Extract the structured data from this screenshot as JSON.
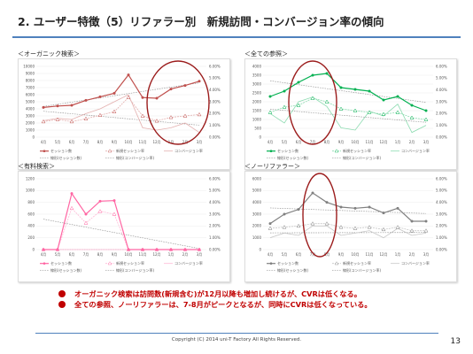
{
  "slide": {
    "title": "2. ユーザー特徴（5）リファラー別　新規訪問・コンバージョン率の傾向",
    "page_number": "13",
    "copyright": "Copyright (C) 2014 uni-T Factory  All Rights Reserved.",
    "accent_color": "#4f81bd",
    "bullet_color": "#c00000",
    "bullets": [
      "オーガニック検索は訪問数(新規含む)が12月以降も増加し続けるが、CVRは低くなる。",
      "全ての参照、ノーリファラーは、7-8月がピークとなるが、同時にCVRは低くなっている。"
    ]
  },
  "chart_data": [
    {
      "type": "line",
      "title": "＜オーガニック検索＞",
      "color": "#c0504d",
      "x": [
        "4月",
        "5月",
        "6月",
        "7月",
        "8月",
        "9月",
        "10月",
        "11月",
        "12月",
        "1月",
        "2月",
        "3月"
      ],
      "ylim_left": [
        0,
        10000
      ],
      "yticks_left": [
        "0",
        "1000",
        "2000",
        "3000",
        "4000",
        "5000",
        "6000",
        "7000",
        "8000",
        "9000",
        "10000"
      ],
      "ylim_right": [
        0,
        0.06
      ],
      "yticks_right": [
        "0.00%",
        "1.00%",
        "2.00%",
        "3.00%",
        "4.00%",
        "5.00%",
        "6.00%"
      ],
      "legend": [
        "セッション数",
        "新規セッション率",
        "コンバージョン率",
        "線形(セッション数)",
        "線形(コンバージョン率)"
      ],
      "series": [
        {
          "name": "セッション数",
          "axis": "left",
          "values": [
            4200,
            4400,
            4500,
            5200,
            5700,
            6200,
            8800,
            5600,
            5500,
            6800,
            7300,
            7900
          ]
        },
        {
          "name": "新規セッション率",
          "axis": "left",
          "values": [
            2200,
            2500,
            2200,
            2600,
            3100,
            3600,
            5600,
            3000,
            2300,
            2800,
            3000,
            3200
          ]
        },
        {
          "name": "コンバージョン率",
          "axis": "right",
          "values": [
            0.014,
            0.016,
            0.015,
            0.02,
            0.024,
            0.03,
            0.036,
            0.008,
            0.006,
            0.008,
            0.012,
            0.004
          ]
        }
      ],
      "highlight": {
        "x_from": "12月",
        "x_to": "3月"
      }
    },
    {
      "type": "line",
      "title": "＜全ての参照＞",
      "color": "#00b050",
      "x": [
        "4月",
        "5月",
        "6月",
        "7月",
        "8月",
        "9月",
        "10月",
        "11月",
        "12月",
        "1月",
        "2月",
        "3月"
      ],
      "ylim_left": [
        0,
        4000
      ],
      "yticks_left": [
        "0",
        "500",
        "1000",
        "1500",
        "2000",
        "2500",
        "3000",
        "3500",
        "4000"
      ],
      "ylim_right": [
        0,
        0.06
      ],
      "yticks_right": [
        "0.00%",
        "1.00%",
        "2.00%",
        "3.00%",
        "4.00%",
        "5.00%",
        "6.00%"
      ],
      "legend": [
        "セッション数",
        "新規セッション率",
        "コンバージョン率",
        "線形(セッション数)",
        "線形(コンバージョン率)"
      ],
      "series": [
        {
          "name": "セッション数",
          "axis": "left",
          "values": [
            2300,
            2600,
            3100,
            3500,
            3600,
            2800,
            2700,
            2600,
            2100,
            2300,
            1800,
            1500
          ]
        },
        {
          "name": "新規セッション率",
          "axis": "left",
          "values": [
            1400,
            1700,
            1800,
            2200,
            2000,
            1600,
            1500,
            1400,
            1300,
            1400,
            1100,
            1000
          ]
        },
        {
          "name": "コンバージョン率",
          "axis": "right",
          "values": [
            0.02,
            0.012,
            0.03,
            0.034,
            0.026,
            0.008,
            0.006,
            0.022,
            0.018,
            0.028,
            0.004,
            0.01
          ]
        }
      ],
      "highlight": {
        "x_from": "6月",
        "x_to": "8月"
      }
    },
    {
      "type": "line",
      "title": "＜有料検索＞",
      "color": "#ff66a3",
      "x": [
        "4月",
        "5月",
        "6月",
        "7月",
        "8月",
        "9月",
        "10月",
        "11月",
        "12月",
        "1月",
        "2月",
        "3月"
      ],
      "ylim_left": [
        0,
        1200
      ],
      "yticks_left": [
        "0",
        "200",
        "400",
        "600",
        "800",
        "1000",
        "1200"
      ],
      "ylim_right": [
        0,
        0.06
      ],
      "yticks_right": [
        "0.00%",
        "1.00%",
        "2.00%",
        "3.00%",
        "4.00%",
        "5.00%",
        "6.00%"
      ],
      "legend": [
        "セッション数",
        "新規セッション率",
        "コンバージョン率",
        "線形(セッション数)",
        "線形(コンバージョン率)"
      ],
      "series": [
        {
          "name": "セッション数",
          "axis": "left",
          "values": [
            0,
            0,
            950,
            600,
            820,
            830,
            0,
            0,
            0,
            0,
            0,
            0
          ]
        },
        {
          "name": "新規セッション率",
          "axis": "left",
          "values": [
            0,
            0,
            700,
            450,
            650,
            600,
            0,
            0,
            0,
            0,
            0,
            0
          ]
        },
        {
          "name": "コンバージョン率",
          "axis": "right",
          "values": [
            0,
            0,
            0,
            0,
            0,
            0,
            0,
            0,
            0,
            0,
            0,
            0
          ]
        }
      ]
    },
    {
      "type": "line",
      "title": "＜ノーリファラー＞",
      "color": "#808080",
      "x": [
        "4月",
        "5月",
        "6月",
        "7月",
        "8月",
        "9月",
        "10月",
        "11月",
        "12月",
        "1月",
        "2月",
        "3月"
      ],
      "ylim_left": [
        0,
        6000
      ],
      "yticks_left": [
        "0",
        "1000",
        "2000",
        "3000",
        "4000",
        "5000",
        "6000"
      ],
      "ylim_right": [
        0,
        0.06
      ],
      "yticks_right": [
        "0.00%",
        "1.00%",
        "2.00%",
        "3.00%",
        "4.00%",
        "5.00%",
        "6.00%"
      ],
      "legend": [
        "セッション数",
        "新規セッション率",
        "コンバージョン率",
        "線形(セッション数)",
        "線形(コンバージョン率)"
      ],
      "series": [
        {
          "name": "セッション数",
          "axis": "left",
          "values": [
            2200,
            3000,
            3400,
            4800,
            4000,
            3600,
            3500,
            3600,
            3100,
            3500,
            2400,
            2400
          ]
        },
        {
          "name": "新規セッション率",
          "axis": "left",
          "values": [
            1800,
            1900,
            2000,
            2200,
            2200,
            1900,
            1800,
            1900,
            1700,
            1900,
            1600,
            1600
          ]
        },
        {
          "name": "コンバージョン率",
          "axis": "right",
          "values": [
            0.01,
            0.014,
            0.012,
            0.02,
            0.02,
            0.012,
            0.014,
            0.016,
            0.01,
            0.018,
            0.012,
            0.014
          ]
        }
      ],
      "highlight": {
        "x_from": "7月",
        "x_to": "8月"
      }
    }
  ]
}
